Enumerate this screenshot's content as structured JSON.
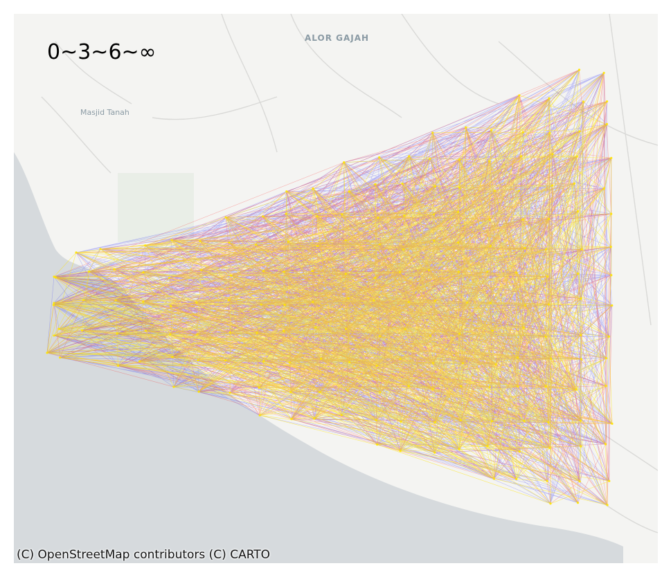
{
  "map": {
    "legend_label": "0~3~6~∞",
    "attribution": "(C) OpenStreetMap contributors (C) CARTO",
    "place_labels": {
      "alor_gajah": "ALOR GAJAH",
      "masjid_tanah": "Masjid Tanah"
    },
    "basemap_colors": {
      "land": "#f4f4f2",
      "sea": "#d6dadd",
      "roads": "#d9d9d7",
      "green": "#e6ece4"
    },
    "edge_colors": [
      "#1f1fff",
      "#ff1010",
      "#ffe600"
    ],
    "edge_class_breaks": [
      "0",
      "3",
      "6",
      "∞"
    ]
  }
}
